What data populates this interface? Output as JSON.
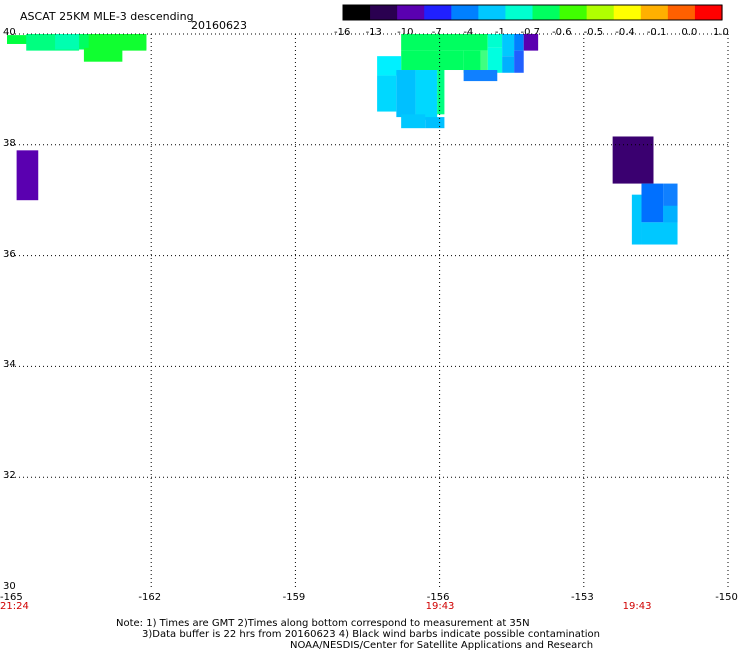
{
  "header": {
    "title": "ASCAT 25KM MLE-3 descending",
    "date": "20160623"
  },
  "colorbar": {
    "labels": [
      "-16",
      "-13",
      "-10",
      "-7",
      "-4",
      "-1",
      "-0.7",
      "-0.6",
      "-0.5",
      "-0.4",
      "-0.1",
      "0.0",
      "1.0"
    ],
    "colors": [
      "#000000",
      "#2a0050",
      "#5a00b0",
      "#2020ff",
      "#0080ff",
      "#00c8ff",
      "#00ffd0",
      "#00ff60",
      "#40ff00",
      "#b0ff00",
      "#ffff00",
      "#ffb000",
      "#ff6000",
      "#ff0000"
    ]
  },
  "map": {
    "lat_labels": [
      "40",
      "38",
      "36",
      "34",
      "32",
      "30"
    ],
    "lon_labels": [
      "-165",
      "-162",
      "-159",
      "-156",
      "-153",
      "-150"
    ],
    "lon_min": -165,
    "lon_max": -150,
    "lat_min": 30,
    "lat_max": 40,
    "time_labels": [
      {
        "lon": -165,
        "text": "21:24"
      },
      {
        "lon": -156,
        "text": "19:43"
      },
      {
        "lon": -151.9,
        "text": "19:43"
      }
    ],
    "cells": [
      {
        "lon0": -165,
        "lon1": -164.2,
        "lat0": 39.82,
        "lat1": 39.98,
        "color": "#00ff40"
      },
      {
        "lon0": -163.9,
        "lon1": -162.1,
        "lat0": 39.72,
        "lat1": 40.0,
        "color": "#00ff60"
      },
      {
        "lon0": -163.3,
        "lon1": -162.1,
        "lat0": 39.7,
        "lat1": 40.0,
        "color": "#10ff30"
      },
      {
        "lon0": -163.4,
        "lon1": -162.6,
        "lat0": 39.5,
        "lat1": 39.75,
        "color": "#10ff30"
      },
      {
        "lon0": -164.6,
        "lon1": -163.5,
        "lat0": 39.7,
        "lat1": 40.0,
        "color": "#00ff80"
      },
      {
        "lon0": -164.0,
        "lon1": -163.5,
        "lat0": 39.72,
        "lat1": 40.0,
        "color": "#00ffb0"
      },
      {
        "lon0": -164.8,
        "lon1": -164.35,
        "lat0": 37.0,
        "lat1": 37.9,
        "color": "#5a00b0"
      },
      {
        "lon0": -156.8,
        "lon1": -155.0,
        "lat0": 39.7,
        "lat1": 40.0,
        "color": "#00ff60"
      },
      {
        "lon0": -155.0,
        "lon1": -154.7,
        "lat0": 39.75,
        "lat1": 40.0,
        "color": "#00ffd0"
      },
      {
        "lon0": -154.7,
        "lon1": -154.45,
        "lat0": 39.6,
        "lat1": 40.0,
        "color": "#00c8ff"
      },
      {
        "lon0": -154.45,
        "lon1": -154.25,
        "lat0": 39.7,
        "lat1": 40.0,
        "color": "#0080ff"
      },
      {
        "lon0": -154.25,
        "lon1": -153.95,
        "lat0": 39.7,
        "lat1": 40.0,
        "color": "#5a00b0"
      },
      {
        "lon0": -154.45,
        "lon1": -154.25,
        "lat0": 39.3,
        "lat1": 39.7,
        "color": "#2060ff"
      },
      {
        "lon0": -154.7,
        "lon1": -154.45,
        "lat0": 39.3,
        "lat1": 39.6,
        "color": "#00b0ff"
      },
      {
        "lon0": -155.0,
        "lon1": -154.7,
        "lat0": 39.3,
        "lat1": 39.75,
        "color": "#00ffe0"
      },
      {
        "lon0": -155.15,
        "lon1": -155.0,
        "lat0": 39.3,
        "lat1": 39.7,
        "color": "#40ff80"
      },
      {
        "lon0": -155.5,
        "lon1": -155.15,
        "lat0": 39.3,
        "lat1": 39.7,
        "color": "#00ff60"
      },
      {
        "lon0": -156.8,
        "lon1": -155.5,
        "lat0": 39.35,
        "lat1": 39.7,
        "color": "#00ff60"
      },
      {
        "lon0": -155.5,
        "lon1": -154.8,
        "lat0": 39.15,
        "lat1": 39.35,
        "color": "#1080ff"
      },
      {
        "lon0": -157.3,
        "lon1": -156.8,
        "lat0": 39.25,
        "lat1": 39.6,
        "color": "#00f0ff"
      },
      {
        "lon0": -157.3,
        "lon1": -156.9,
        "lat0": 38.6,
        "lat1": 39.25,
        "color": "#00d8ff"
      },
      {
        "lon0": -156.9,
        "lon1": -156.5,
        "lat0": 38.5,
        "lat1": 39.35,
        "color": "#00c0ff"
      },
      {
        "lon0": -156.5,
        "lon1": -156.05,
        "lat0": 38.45,
        "lat1": 39.35,
        "color": "#00d8ff"
      },
      {
        "lon0": -156.05,
        "lon1": -155.9,
        "lat0": 38.55,
        "lat1": 39.35,
        "color": "#00ff80"
      },
      {
        "lon0": -156.8,
        "lon1": -156.3,
        "lat0": 38.3,
        "lat1": 38.55,
        "color": "#00c8ff"
      },
      {
        "lon0": -156.3,
        "lon1": -155.9,
        "lat0": 38.3,
        "lat1": 38.5,
        "color": "#00c0ff"
      },
      {
        "lon0": -152.4,
        "lon1": -151.55,
        "lat0": 37.3,
        "lat1": 38.15,
        "color": "#3a0070"
      },
      {
        "lon0": -151.8,
        "lon1": -151.35,
        "lat0": 36.6,
        "lat1": 37.3,
        "color": "#0070ff"
      },
      {
        "lon0": -151.35,
        "lon1": -151.05,
        "lat0": 36.6,
        "lat1": 37.3,
        "color": "#1080ff"
      },
      {
        "lon0": -152.0,
        "lon1": -151.8,
        "lat0": 36.2,
        "lat1": 37.1,
        "color": "#00c8ff"
      },
      {
        "lon0": -151.8,
        "lon1": -151.05,
        "lat0": 36.2,
        "lat1": 36.6,
        "color": "#00c8ff"
      },
      {
        "lon0": -151.35,
        "lon1": -151.05,
        "lat0": 36.6,
        "lat1": 36.9,
        "color": "#00b0ff"
      }
    ]
  },
  "notes": {
    "line1": "Note: 1) Times are GMT 2)Times along bottom correspond to measurement at 35N",
    "line2": "3)Data buffer is 22 hrs from 20160623 4) Black wind barbs indicate possible contamination",
    "line3": "NOAA/NESDIS/Center for Satellite Applications and Research"
  }
}
